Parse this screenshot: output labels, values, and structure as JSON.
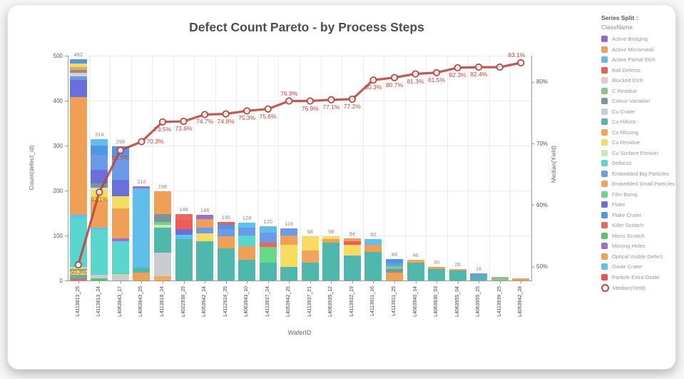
{
  "title": "Defect Count Pareto - by Process Steps",
  "legend": {
    "header": "Series Split :",
    "subheader": "ClassName",
    "items": [
      {
        "label": "Active Bridging",
        "color": "#9a67ce"
      },
      {
        "label": "Active Micromask",
        "color": "#f0a055"
      },
      {
        "label": "Active Partial Etch",
        "color": "#61bde9"
      },
      {
        "label": "Ball Defects",
        "color": "#f05b56"
      },
      {
        "label": "Blocked Etch",
        "color": "#e2cbc8"
      },
      {
        "label": "C Residue",
        "color": "#92c188"
      },
      {
        "label": "Colour Variation",
        "color": "#7e939d"
      },
      {
        "label": "Cu Crater",
        "color": "#c9cdd2"
      },
      {
        "label": "Cu Hillock",
        "color": "#4fb8ad"
      },
      {
        "label": "Cu Missing",
        "color": "#f5a65b"
      },
      {
        "label": "Cu Residue",
        "color": "#f7dc5f"
      },
      {
        "label": "Cu Surface Erosion",
        "color": "#c9ecb4"
      },
      {
        "label": "Defocus",
        "color": "#59d7ce"
      },
      {
        "label": "Embedded Big Particles",
        "color": "#6b9be8"
      },
      {
        "label": "Embedded Small Particles",
        "color": "#f2a45c"
      },
      {
        "label": "Film Bump",
        "color": "#68d788"
      },
      {
        "label": "Flake",
        "color": "#6a6fdc"
      },
      {
        "label": "Flake Crater",
        "color": "#4d96e8"
      },
      {
        "label": "Killer Scratch",
        "color": "#ec6660"
      },
      {
        "label": "Micro Scratch",
        "color": "#55c568"
      },
      {
        "label": "Missing Holes",
        "color": "#9c6fd6"
      },
      {
        "label": "Optical Visible Defect",
        "color": "#e9a356"
      },
      {
        "label": "Oxide Crater",
        "color": "#5ac4f0"
      },
      {
        "label": "Particle Extra Oxide",
        "color": "#f0534e"
      }
    ],
    "line_item": {
      "label": "Median(Yield)",
      "color": "#be463f"
    }
  },
  "axes": {
    "left": {
      "title": "Count(defect_id)",
      "ticks": [
        0,
        100,
        200,
        300,
        400,
        500
      ],
      "max": 500
    },
    "right": {
      "title": "Median(Yield)",
      "ticks": [
        "50%",
        "60%",
        "70%",
        "80%"
      ],
      "tick_values": [
        50,
        60,
        70,
        80
      ]
    },
    "x": {
      "title": "WaferID"
    }
  },
  "chart_data": {
    "type": "pareto (stacked bar + cumulative line)",
    "categories": [
      "L4113813_25",
      "L4113813_24",
      "L4063943_17",
      "L4063943_25",
      "L4113818_24",
      "L4022938_25",
      "L4053942_24",
      "L4112924_25",
      "L4063943_10",
      "L4113937_24",
      "L4053942_25",
      "L4113937_21",
      "L4063935_12",
      "L4113922_19",
      "L4113911_16",
      "L4113911_25",
      "L4063940_14",
      "L4063936_03",
      "L4063955_04",
      "L4063955_25",
      "L4113939_25",
      "L4053942_28"
    ],
    "bar_totals": [
      492,
      314,
      298,
      210,
      198,
      148,
      146,
      130,
      128,
      120,
      116,
      98,
      98,
      94,
      92,
      48,
      46,
      30,
      26,
      16,
      8,
      4
    ],
    "bar_labels": [
      "492",
      "314",
      "298",
      "210",
      "198",
      "148",
      "146",
      "130",
      "128",
      "120",
      "116",
      "98",
      "98",
      "94",
      "92",
      "48",
      "46",
      "30",
      "26",
      "16",
      "",
      ""
    ],
    "stacks": [
      [
        [
          "Killer Scratch",
          4
        ],
        [
          "Cu Hillock",
          8
        ],
        [
          "Cu Residue",
          10
        ],
        [
          "Micro Scratch",
          3
        ],
        [
          "Cu Crater",
          5
        ],
        [
          "Defocus",
          108
        ],
        [
          "Oxide Crater",
          8
        ],
        [
          "Active Micromask",
          262
        ],
        [
          "Flake",
          38
        ],
        [
          "Embedded Big Particles",
          8
        ],
        [
          "Blocked Etch",
          8
        ],
        [
          "Colour Variation",
          6
        ],
        [
          "Embedded Small Particles",
          6
        ],
        [
          "Cu Residue",
          8
        ],
        [
          "Flake Crater",
          10
        ]
      ],
      [
        [
          "Micro Scratch",
          4
        ],
        [
          "Cu Crater",
          8
        ],
        [
          "Defocus",
          100
        ],
        [
          "Oxide Crater",
          6
        ],
        [
          "Active Micromask",
          60
        ],
        [
          "Cu Residue",
          22
        ],
        [
          "Cu Surface Erosion",
          6
        ],
        [
          "Colour Variation",
          10
        ],
        [
          "Flake",
          30
        ],
        [
          "Embedded Big Particles",
          34
        ],
        [
          "Flake Crater",
          20
        ],
        [
          "Active Partial Etch",
          14
        ]
      ],
      [
        [
          "Cu Crater",
          14
        ],
        [
          "Film Bump",
          4
        ],
        [
          "Defocus",
          70
        ],
        [
          "Missing Holes",
          6
        ],
        [
          "Active Micromask",
          66
        ],
        [
          "Cu Residue",
          28
        ],
        [
          "Flake",
          36
        ],
        [
          "Embedded Big Particles",
          50
        ],
        [
          "Flake Crater",
          24
        ]
      ],
      [
        [
          "Active Micromask",
          18
        ],
        [
          "Cu Hillock",
          10
        ],
        [
          "Active Partial Etch",
          176
        ],
        [
          "Missing Holes",
          6
        ]
      ],
      [
        [
          "Cu Missing",
          10
        ],
        [
          "Cu Crater",
          52
        ],
        [
          "Cu Hillock",
          56
        ],
        [
          "Cu Surface Erosion",
          6
        ],
        [
          "Film Bump",
          6
        ],
        [
          "Colour Variation",
          18
        ],
        [
          "Active Micromask",
          50
        ]
      ],
      [
        [
          "Cu Hillock",
          92
        ],
        [
          "Oxide Crater",
          10
        ],
        [
          "Flake",
          12
        ],
        [
          "Ball Defects",
          20
        ],
        [
          "Killer Scratch",
          14
        ]
      ],
      [
        [
          "Cu Hillock",
          88
        ],
        [
          "Cu Residue",
          16
        ],
        [
          "Embedded Big Particles",
          14
        ],
        [
          "Active Micromask",
          18
        ],
        [
          "Missing Holes",
          10
        ]
      ],
      [
        [
          "Cu Hillock",
          72
        ],
        [
          "Active Micromask",
          26
        ],
        [
          "Embedded Big Particles",
          16
        ],
        [
          "Flake Crater",
          10
        ],
        [
          "Ball Defects",
          6
        ]
      ],
      [
        [
          "Cu Hillock",
          46
        ],
        [
          "Active Micromask",
          30
        ],
        [
          "Defocus",
          24
        ],
        [
          "Embedded Big Particles",
          18
        ],
        [
          "Oxide Crater",
          10
        ]
      ],
      [
        [
          "Cu Hillock",
          40
        ],
        [
          "Film Bump",
          34
        ],
        [
          "Killer Scratch",
          10
        ],
        [
          "Embedded Big Particles",
          22
        ],
        [
          "Active Partial Etch",
          14
        ]
      ],
      [
        [
          "Cu Hillock",
          30
        ],
        [
          "Cu Residue",
          50
        ],
        [
          "Active Micromask",
          20
        ],
        [
          "Embedded Big Particles",
          16
        ]
      ],
      [
        [
          "Cu Hillock",
          40
        ],
        [
          "Embedded Small Particles",
          26
        ],
        [
          "Cu Residue",
          32
        ]
      ],
      [
        [
          "Cu Hillock",
          84
        ],
        [
          "Active Micromask",
          8
        ],
        [
          "Cu Residue",
          6
        ]
      ],
      [
        [
          "Cu Hillock",
          56
        ],
        [
          "Cu Residue",
          24
        ],
        [
          "Ball Defects",
          8
        ],
        [
          "Active Micromask",
          6
        ]
      ],
      [
        [
          "Cu Hillock",
          64
        ],
        [
          "Active Micromask",
          16
        ],
        [
          "Oxide Crater",
          12
        ]
      ],
      [
        [
          "Active Micromask",
          18
        ],
        [
          "Colour Variation",
          8
        ],
        [
          "Film Bump",
          6
        ],
        [
          "Embedded Big Particles",
          6
        ],
        [
          "Flake Crater",
          10
        ]
      ],
      [
        [
          "Cu Hillock",
          40
        ],
        [
          "Cu Missing",
          6
        ]
      ],
      [
        [
          "Cu Hillock",
          26
        ],
        [
          "Active Micromask",
          4
        ]
      ],
      [
        [
          "Cu Hillock",
          22
        ],
        [
          "Active Micromask",
          4
        ]
      ],
      [
        [
          "Cu Hillock",
          10
        ],
        [
          "Embedded Big Particles",
          6
        ]
      ],
      [
        [
          "C Residue",
          8
        ]
      ],
      [
        [
          "Active Micromask",
          4
        ]
      ]
    ],
    "line": {
      "name": "Median(Yield)",
      "values": [
        50.3,
        62.1,
        68.9,
        70.3,
        73.5,
        73.6,
        74.7,
        74.8,
        75.3,
        75.6,
        76.9,
        76.9,
        77.1,
        77.2,
        80.3,
        80.7,
        81.3,
        81.5,
        82.3,
        82.4,
        82.4,
        83.1
      ],
      "labels": [
        "50.3%",
        "62.1%",
        "68.9%",
        "70.3%",
        "73.5%",
        "73.6%",
        "74.7%",
        "74.8%",
        "75.3%",
        "75.6%",
        "76.9%",
        "76.9%",
        "77.1%",
        "77.2%",
        "80.3%",
        "80.7%",
        "81.3%",
        "81.5%",
        "82.3%",
        "82.4%",
        "",
        "83.1%"
      ],
      "label_side": [
        "below",
        "below",
        "below",
        "right",
        "below",
        "below",
        "below",
        "below",
        "below",
        "below",
        "above",
        "below",
        "below",
        "below",
        "below",
        "below",
        "below",
        "below",
        "below",
        "below",
        "",
        "above-left"
      ],
      "color": "#be463f"
    },
    "title": "Defect Count Pareto - by Process Steps",
    "xlabel": "WaferID",
    "ylabel_left": "Count(defect_id)",
    "ylabel_right": "Median(Yield)",
    "ylim_left": [
      0,
      500
    ],
    "ylim_right_ticks_pct": [
      50,
      60,
      70,
      80
    ],
    "grid": true,
    "legend_position": "right"
  }
}
